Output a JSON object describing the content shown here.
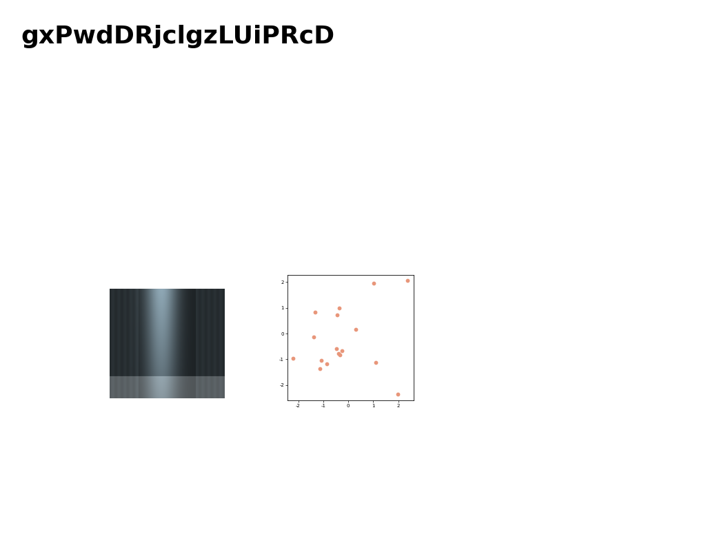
{
  "title": "gxPwdDRjclgzLUiPRcD",
  "chart_data": {
    "type": "scatter",
    "x": [
      -2.21,
      -1.32,
      -1.38,
      -0.36,
      -0.44,
      0.3,
      1.02,
      2.37,
      1.1,
      1.99,
      -1.08,
      -1.13,
      -0.86,
      -0.47,
      -0.39,
      -0.33,
      -0.25
    ],
    "values": [
      -0.96,
      0.83,
      -0.13,
      0.99,
      0.72,
      0.16,
      1.95,
      2.05,
      -1.12,
      -2.35,
      -1.04,
      -1.36,
      -1.17,
      -0.59,
      -0.77,
      -0.83,
      -0.67
    ],
    "color": "#e8967a",
    "xlim": [
      -2.43,
      2.62
    ],
    "ylim": [
      -2.59,
      2.27
    ],
    "xticks": [
      -2,
      -1,
      0,
      1,
      2
    ],
    "yticks": [
      -2,
      -1,
      0,
      1,
      2
    ],
    "grid": false
  }
}
